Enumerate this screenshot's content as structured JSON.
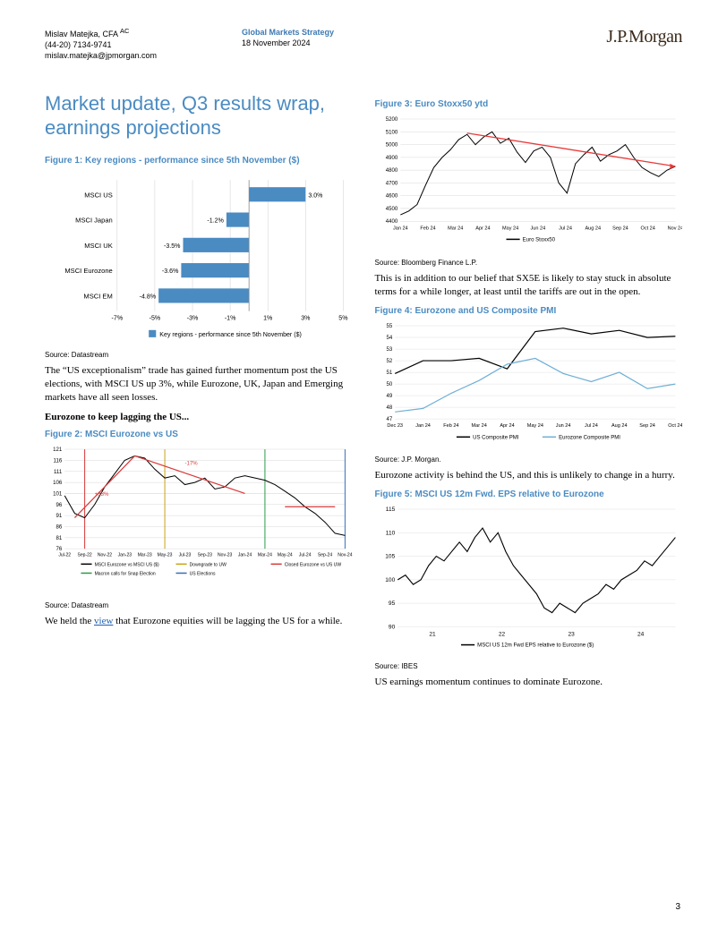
{
  "header": {
    "author_name": "Mislav Matejka, CFA",
    "author_sup": "AC",
    "author_phone": "(44-20) 7134-9741",
    "author_email": "mislav.matejka@jpmorgan.com",
    "dept": "Global Markets Strategy",
    "date": "18 November 2024",
    "logo": "J.P.Morgan"
  },
  "title": "Market update, Q3 results wrap, earnings projections",
  "page_number": "3",
  "fig1": {
    "title": "Figure 1: Key regions - performance since 5th November ($)",
    "type": "bar",
    "categories": [
      "MSCI US",
      "MSCI Japan",
      "MSCI UK",
      "MSCI Eurozone",
      "MSCI EM"
    ],
    "values": [
      3.0,
      -1.2,
      -3.5,
      -3.6,
      -4.8
    ],
    "value_labels": [
      "3.0%",
      "-1.2%",
      "-3.5%",
      "-3.6%",
      "-4.8%"
    ],
    "bar_color": "#4a8bc2",
    "grid_color": "#d0d0d0",
    "text_color": "#000000",
    "xticks": [
      -7,
      -5,
      -3,
      -1,
      1,
      3,
      5
    ],
    "xtick_labels": [
      "-7%",
      "-5%",
      "-3%",
      "-1%",
      "1%",
      "3%",
      "5%"
    ],
    "legend": "Key regions - performance since 5th November ($)",
    "source": "Source: Datastream"
  },
  "para1": "The “US exceptionalism” trade has gained further momentum post the US elections, with MSCI US up 3%, while Eurozone, UK, Japan and Emerging markets have all seen losses.",
  "subhead1": "Eurozone to keep lagging the US...",
  "fig2": {
    "title": "Figure 2: MSCI Eurozone vs US",
    "type": "line",
    "yticks": [
      76,
      81,
      86,
      91,
      96,
      101,
      106,
      111,
      116,
      121
    ],
    "xticks": [
      "Jul-22",
      "Sep-22",
      "Nov-22",
      "Jan-23",
      "Mar-23",
      "May-23",
      "Jul-23",
      "Sep-23",
      "Nov-23",
      "Jan-24",
      "Mar-24",
      "May-24",
      "Jul-24",
      "Sep-24",
      "Nov-24"
    ],
    "main_line_color": "#000000",
    "anno_up_color": "#d93838",
    "anno_up_label": "+33%",
    "anno_down_label": "-17%",
    "vlines": [
      {
        "x_label": "Sep-22",
        "color": "#d93838"
      },
      {
        "x_label": "May-23",
        "color": "#c9a215"
      },
      {
        "x_label": "Mar-24",
        "color": "#2e9b4a"
      },
      {
        "x_label": "Nov-24",
        "color": "#3a6fb7"
      }
    ],
    "series_points": [
      100,
      92,
      90,
      96,
      104,
      110,
      116,
      118,
      117,
      112,
      108,
      109,
      105,
      106,
      108,
      103,
      104,
      108,
      109,
      108,
      107,
      105,
      102,
      99,
      95,
      92,
      88,
      83,
      82
    ],
    "legend_items": [
      {
        "label": "MSCI Eurozone vs MSCI US ($)",
        "color": "#000000"
      },
      {
        "label": "Macron calls for Snap Election",
        "color": "#2e9b4a"
      },
      {
        "label": "Downgrade to UW",
        "color": "#c9a215"
      },
      {
        "label": "US Elections",
        "color": "#3a6fb7"
      },
      {
        "label": "Closed Eurozone vs US UW",
        "color": "#d93838"
      }
    ],
    "source": "Source: Datastream",
    "grid_color": "#d9d9d9"
  },
  "para2a": "We held the ",
  "para2_link": "view",
  "para2b": " that Eurozone equities will be lagging the US for a while.",
  "fig3": {
    "title": "Figure 3: Euro Stoxx50 ytd",
    "type": "line",
    "yticks": [
      4400,
      4500,
      4600,
      4700,
      4800,
      4900,
      5000,
      5100,
      5200
    ],
    "xticks": [
      "Jan 24",
      "Feb 24",
      "Mar 24",
      "Apr 24",
      "May 24",
      "Jun 24",
      "Jul 24",
      "Aug 24",
      "Sep 24",
      "Oct 24",
      "Nov 24"
    ],
    "line_color": "#000000",
    "trend_color": "#e83a3a",
    "grid_color": "#d9d9d9",
    "legend": "Euro Stoxx50",
    "series_points": [
      4450,
      4480,
      4530,
      4680,
      4820,
      4900,
      4960,
      5040,
      5080,
      5000,
      5060,
      5100,
      5010,
      5050,
      4940,
      4860,
      4950,
      4980,
      4900,
      4700,
      4620,
      4850,
      4920,
      4980,
      4870,
      4920,
      4950,
      5000,
      4900,
      4820,
      4780,
      4750,
      4800,
      4830
    ],
    "trend_start_y": 5090,
    "trend_end_y": 4830,
    "source": "Source: Bloomberg Finance L.P."
  },
  "para3": "This is in addition to our belief that SX5E is likely to stay stuck in absolute terms for a while longer, at least until the tariffs are out in the open.",
  "fig4": {
    "title": "Figure 4: Eurozone and US Composite PMI",
    "type": "line",
    "yticks": [
      47,
      48,
      49,
      50,
      51,
      52,
      53,
      54,
      55
    ],
    "xticks": [
      "Dec 23",
      "Jan 24",
      "Feb 24",
      "Mar 24",
      "Apr 24",
      "May 24",
      "Jun 24",
      "Jul 24",
      "Aug 24",
      "Sep 24",
      "Oct 24"
    ],
    "us_color": "#000000",
    "ez_color": "#6fafd6",
    "grid_color": "#e0e0e0",
    "us_points": [
      50.9,
      52.0,
      52.0,
      52.2,
      51.3,
      54.5,
      54.8,
      54.3,
      54.6,
      54.0,
      54.1
    ],
    "ez_points": [
      47.6,
      47.9,
      49.2,
      50.3,
      51.7,
      52.2,
      50.9,
      50.2,
      51.0,
      49.6,
      50.0
    ],
    "legend_us": "US Composite PMI",
    "legend_ez": "Eurozone Composite PMI",
    "source": "Source: J.P. Morgan."
  },
  "para4": "Eurozone activity is behind the US, and this is unlikely to change in a hurry.",
  "fig5": {
    "title": "Figure 5: MSCI US 12m Fwd. EPS relative to Eurozone",
    "type": "line",
    "yticks": [
      90,
      95,
      100,
      105,
      110,
      115
    ],
    "xticks": [
      "21",
      "22",
      "23",
      "24"
    ],
    "line_color": "#000000",
    "grid_color": "#e0e0e0",
    "legend": "MSCI US 12m Fwd EPS relative to Eurozone ($)",
    "series_points": [
      100,
      101,
      99,
      100,
      103,
      105,
      104,
      106,
      108,
      106,
      109,
      111,
      108,
      110,
      106,
      103,
      101,
      99,
      97,
      94,
      93,
      95,
      94,
      93,
      95,
      96,
      97,
      99,
      98,
      100,
      101,
      102,
      104,
      103,
      105,
      107,
      109
    ],
    "source": "Source: IBES"
  },
  "para5": "US earnings momentum continues to dominate Eurozone."
}
